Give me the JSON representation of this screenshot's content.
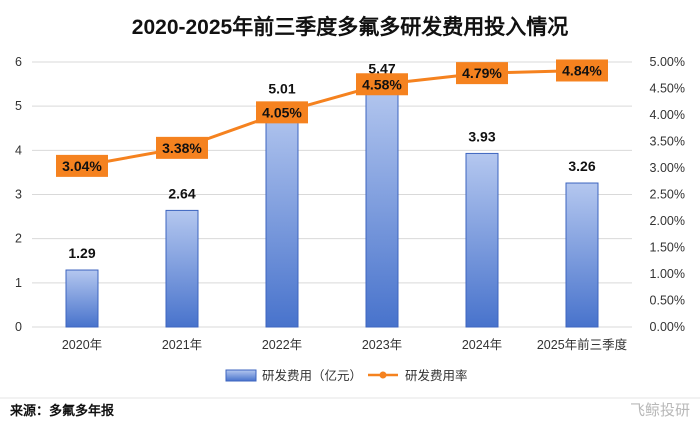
{
  "chart_data": {
    "type": "bar+line",
    "title": "2020-2025年前三季度多氟多研发费用投入情况",
    "categories": [
      "2020年",
      "2021年",
      "2022年",
      "2023年",
      "2024年",
      "2025年前三季度"
    ],
    "series": [
      {
        "name": "研发费用（亿元）",
        "type": "bar",
        "axis": "left",
        "values": [
          1.29,
          2.64,
          5.01,
          5.47,
          3.93,
          3.26
        ],
        "labels": [
          "1.29",
          "2.64",
          "5.01",
          "5.47",
          "3.93",
          "3.26"
        ]
      },
      {
        "name": "研发费用率",
        "type": "line",
        "axis": "right",
        "values": [
          3.04,
          3.38,
          4.05,
          4.58,
          4.79,
          4.84
        ],
        "labels": [
          "3.04%",
          "3.38%",
          "4.05%",
          "4.58%",
          "4.79%",
          "4.84%"
        ]
      }
    ],
    "y_left": {
      "min": 0,
      "max": 6,
      "ticks": [
        "0",
        "1",
        "2",
        "3",
        "4",
        "5",
        "6"
      ]
    },
    "y_right": {
      "min": 0,
      "max": 5,
      "ticks": [
        "0.00%",
        "0.50%",
        "1.00%",
        "1.50%",
        "2.00%",
        "2.50%",
        "3.00%",
        "3.50%",
        "4.00%",
        "4.50%",
        "5.00%"
      ]
    },
    "grid": true,
    "legend_position": "bottom",
    "colors": {
      "bar_top": "#b4c7ef",
      "bar_bottom": "#4873cc",
      "bar_edge": "#3d64bf",
      "line": "#f5821f",
      "label_box": "#f5821f"
    }
  },
  "footer": {
    "source": "来源：多氟多年报"
  },
  "watermark": "飞鲸投研"
}
